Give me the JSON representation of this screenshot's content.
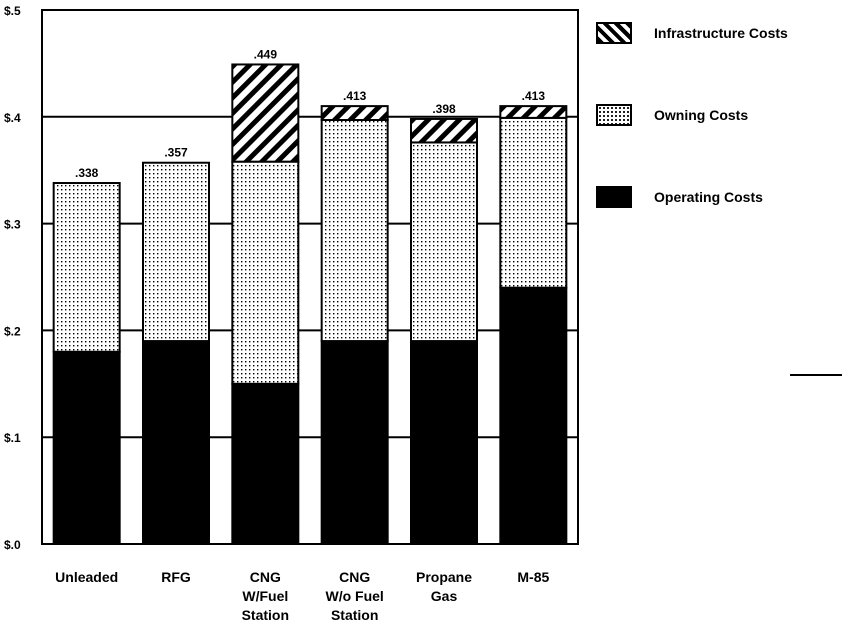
{
  "chart_data": {
    "type": "bar",
    "stacked": true,
    "title": "",
    "xlabel": "",
    "ylabel": "",
    "ylim": [
      0,
      0.5
    ],
    "yticks": [
      0,
      0.1,
      0.2,
      0.3,
      0.4,
      0.5
    ],
    "ytick_labels": [
      "$.0",
      "$.1",
      "$.2",
      "$.3",
      "$.4",
      "$.5"
    ],
    "grid": "horizontal",
    "legend_position": "right",
    "categories": [
      [
        "Unleaded"
      ],
      [
        "RFG"
      ],
      [
        "CNG",
        "W/Fuel",
        "Station"
      ],
      [
        "CNG",
        "W/o Fuel",
        "Station"
      ],
      [
        "Propane",
        "Gas"
      ],
      [
        "M-85"
      ]
    ],
    "totals": [
      ".338",
      ".357",
      ".449",
      ".413",
      ".398",
      ".413"
    ],
    "series": [
      {
        "name": "Operating Costs",
        "pattern": "solid",
        "values": [
          0.18,
          0.19,
          0.15,
          0.19,
          0.19,
          0.24
        ]
      },
      {
        "name": "Owning Costs",
        "pattern": "dots",
        "values": [
          0.158,
          0.167,
          0.208,
          0.207,
          0.186,
          0.159
        ]
      },
      {
        "name": "Infrastructure Costs",
        "pattern": "hatch",
        "values": [
          0,
          0,
          0.091,
          0.013,
          0.022,
          0.011
        ]
      }
    ],
    "legend_order": [
      "Infrastructure Costs",
      "Owning Costs",
      "Operating Costs"
    ]
  },
  "colors": {
    "ink": "#000000",
    "background": "#ffffff"
  }
}
